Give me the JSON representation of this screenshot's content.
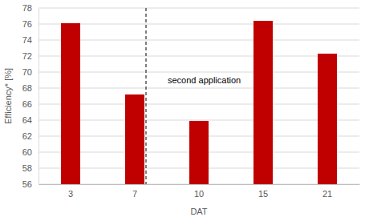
{
  "chart_data": {
    "type": "bar",
    "x_label": "DAT",
    "y_label": "Efficiency* [%]",
    "categories": [
      "3",
      "7",
      "10",
      "15",
      "21"
    ],
    "values": [
      76.1,
      67.2,
      63.9,
      76.4,
      72.3
    ],
    "color": "#c00000",
    "ylim": [
      56,
      78
    ],
    "yticks": [
      56,
      58,
      60,
      62,
      64,
      66,
      68,
      70,
      72,
      74,
      76,
      78
    ],
    "grid": true,
    "annotations": [
      "second application"
    ]
  }
}
